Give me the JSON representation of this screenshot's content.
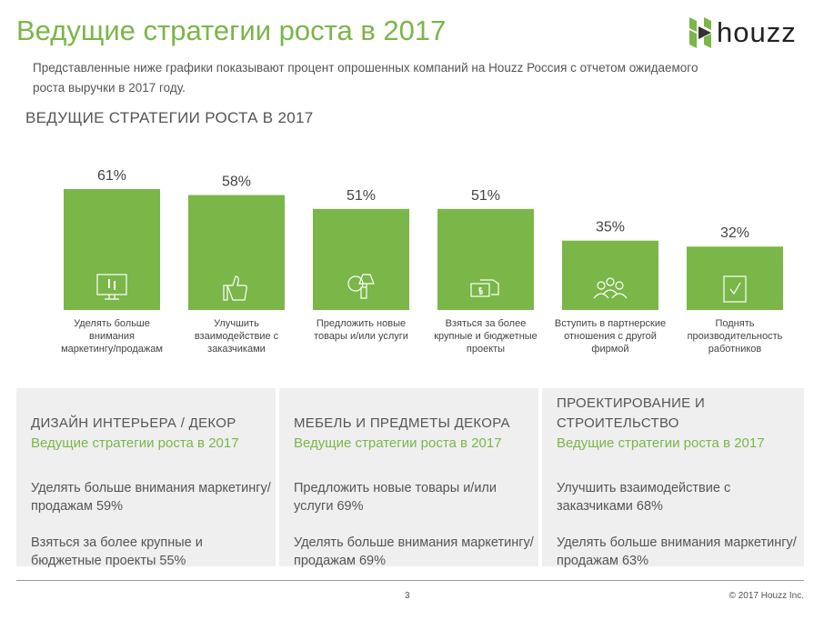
{
  "header": {
    "title": "Ведущие стратегии роста в 2017",
    "logo_text": "houzz",
    "description": "Представленные ниже графики показывают процент опрошенных компаний на Houzz Россия с отчетом ожидаемого роста выручки в 2017 году."
  },
  "chart_data": {
    "type": "bar",
    "title": "ВЕДУЩИЕ СТРАТЕГИИ РОСТА В 2017",
    "categories": [
      "Уделять больше внимания маркетингу/продажам",
      "Улучшить взаимодействие с заказчиками",
      "Предложить новые товары и/или услуги",
      "Взяться за более крупные и бюджетные проекты",
      "Вступить в партнерские отношения с другой фирмой",
      "Поднять производительность работников"
    ],
    "values": [
      61,
      58,
      51,
      51,
      35,
      32
    ],
    "data_labels": [
      "61%",
      "58%",
      "51%",
      "51%",
      "35%",
      "32%"
    ],
    "icons": [
      "monitor-icon",
      "thumbs-up-icon",
      "lamp-icon",
      "handshake-money-icon",
      "workers-icon",
      "checkbox-icon"
    ],
    "ylim": [
      0,
      100
    ],
    "color": "#7ab648"
  },
  "panels": [
    {
      "heading": "ДИЗАЙН ИНТЕРЬЕРА / ДЕКОР",
      "subtitle": "Ведущие стратегии роста в 2017",
      "items": [
        "Уделять больше внимания маркетингу/продажам   59%",
        "Взяться за более крупные и бюджетные проекты   55%"
      ]
    },
    {
      "heading": "МЕБЕЛЬ И ПРЕДМЕТЫ ДЕКОРА",
      "subtitle": "Ведущие стратегии роста в 2017",
      "items": [
        "Предложить новые товары и/или услуги   69%",
        "Уделять больше внимания маркетингу/продажам   69%"
      ]
    },
    {
      "heading": "ПРОЕКТИРОВАНИЕ И СТРОИТЕЛЬСТВО",
      "subtitle": "Ведущие стратегии роста в 2017",
      "items": [
        "Улучшить взаимодействие с заказчиками   68%",
        "Уделять больше внимания маркетингу/продажам   63%"
      ]
    }
  ],
  "footer": {
    "page": "3",
    "copyright": "© 2017 Houzz Inc."
  }
}
